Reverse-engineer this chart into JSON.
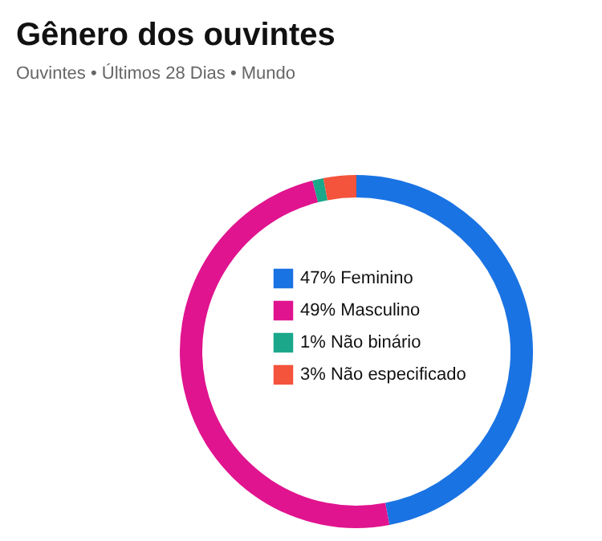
{
  "chart_data": {
    "type": "donut",
    "title": "Gênero dos ouvintes",
    "subtitle": "Ouvintes • Últimos 28 Dias • Mundo",
    "categories": [
      "Feminino",
      "Masculino",
      "Não binário",
      "Não especificado"
    ],
    "values": [
      47,
      49,
      1,
      3
    ],
    "value_labels": [
      "47%",
      "49%",
      "1%",
      "3%"
    ],
    "colors": [
      "#1a73e3",
      "#e0148f",
      "#1aa78a",
      "#f4533c"
    ],
    "legend": "center"
  }
}
